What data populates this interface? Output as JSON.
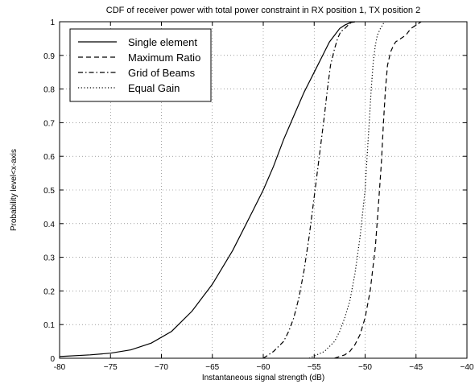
{
  "chart_data": {
    "type": "line",
    "title": "CDF of receiver power with total power constraint in RX position 1, TX position 2",
    "xlabel": "Instantaneous signal strength (dB)",
    "ylabel": "Probability level<x-axis",
    "xlim": [
      -80,
      -40
    ],
    "ylim": [
      0,
      1
    ],
    "xticks": [
      -80,
      -75,
      -70,
      -65,
      -60,
      -55,
      -50,
      -45,
      -40
    ],
    "xtick_labels": [
      "-80",
      "−75",
      "−70",
      "−65",
      "−60",
      "−55",
      "−50",
      "−45",
      "−40"
    ],
    "yticks": [
      0,
      0.1,
      0.2,
      0.3,
      0.4,
      0.5,
      0.6,
      0.7,
      0.8,
      0.9,
      1
    ],
    "ytick_labels": [
      "0",
      "0.1",
      "0.2",
      "0.3",
      "0.4",
      "0.5",
      "0.6",
      "0.7",
      "0.8",
      "0.9",
      "1"
    ],
    "grid": true,
    "legend_position": "top-left",
    "series": [
      {
        "name": "Single element",
        "line_style": "solid",
        "x": [
          -80,
          -77,
          -75,
          -73,
          -71,
          -69,
          -67,
          -65,
          -63,
          -62,
          -61,
          -60,
          -59,
          -58,
          -57,
          -56,
          -55,
          -54.5,
          -54,
          -53.5,
          -53,
          -52.5,
          -52,
          -51.5,
          -51
        ],
        "y": [
          0.005,
          0.01,
          0.015,
          0.025,
          0.045,
          0.08,
          0.14,
          0.22,
          0.32,
          0.38,
          0.44,
          0.5,
          0.57,
          0.65,
          0.72,
          0.79,
          0.85,
          0.88,
          0.91,
          0.94,
          0.96,
          0.98,
          0.99,
          0.997,
          1.0
        ]
      },
      {
        "name": "Maximum Ratio",
        "line_style": "dashed",
        "x": [
          -53,
          -52,
          -51.5,
          -51,
          -50.5,
          -50,
          -49.5,
          -49,
          -48.7,
          -48.4,
          -48.2,
          -48,
          -47.8,
          -47.5,
          -47.2,
          -47,
          -46.5,
          -46,
          -45.5,
          -45,
          -44.5
        ],
        "y": [
          0,
          0.01,
          0.02,
          0.04,
          0.07,
          0.12,
          0.2,
          0.33,
          0.45,
          0.58,
          0.7,
          0.8,
          0.87,
          0.91,
          0.93,
          0.94,
          0.95,
          0.96,
          0.98,
          0.99,
          1.0
        ]
      },
      {
        "name": "Grid of Beams",
        "line_style": "dashdot",
        "x": [
          -60,
          -59,
          -58,
          -57.5,
          -57,
          -56.5,
          -56,
          -55.5,
          -55,
          -54.5,
          -54,
          -53.7,
          -53.4,
          -53,
          -52.7,
          -52.4,
          -52,
          -51.5,
          -51
        ],
        "y": [
          0,
          0.02,
          0.05,
          0.08,
          0.12,
          0.18,
          0.26,
          0.36,
          0.48,
          0.6,
          0.72,
          0.8,
          0.87,
          0.92,
          0.95,
          0.97,
          0.98,
          0.995,
          1.0
        ]
      },
      {
        "name": "Equal Gain",
        "line_style": "dotted",
        "x": [
          -55.5,
          -54,
          -53,
          -52.5,
          -52,
          -51.5,
          -51,
          -50.5,
          -50,
          -49.8,
          -49.6,
          -49.4,
          -49.2,
          -49,
          -48.8,
          -48.5,
          -48.2,
          -48
        ],
        "y": [
          0,
          0.02,
          0.05,
          0.08,
          0.12,
          0.17,
          0.25,
          0.36,
          0.5,
          0.6,
          0.7,
          0.8,
          0.88,
          0.93,
          0.96,
          0.98,
          0.995,
          1.0
        ]
      }
    ]
  }
}
